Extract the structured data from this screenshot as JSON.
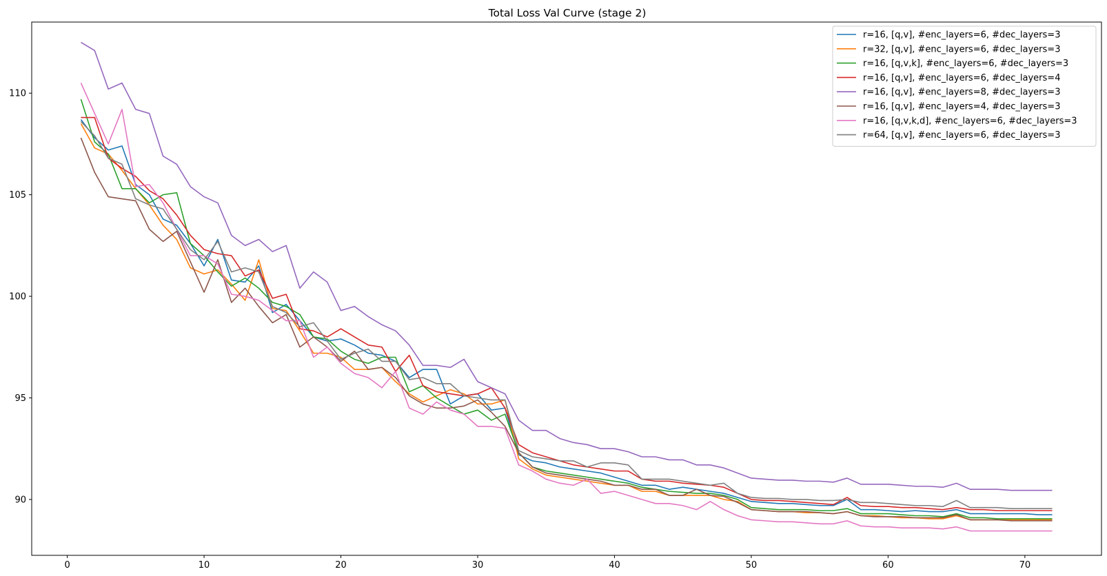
{
  "chart_data": {
    "type": "line",
    "title": "Total Loss Val Curve (stage 2)",
    "xlabel": "",
    "ylabel": "",
    "xlim": [
      -2.6,
      75.6
    ],
    "ylim": [
      87.25,
      113.5
    ],
    "xticks": [
      0,
      10,
      20,
      30,
      40,
      50,
      60,
      70
    ],
    "yticks": [
      90,
      95,
      100,
      105,
      110
    ],
    "grid": false,
    "legend_position": "top-right",
    "x": [
      1,
      2,
      3,
      4,
      5,
      6,
      7,
      8,
      9,
      10,
      11,
      12,
      13,
      14,
      15,
      16,
      17,
      18,
      19,
      20,
      21,
      22,
      23,
      24,
      25,
      26,
      27,
      28,
      29,
      30,
      31,
      32,
      33,
      34,
      35,
      36,
      37,
      38,
      39,
      40,
      41,
      42,
      43,
      44,
      45,
      46,
      47,
      48,
      49,
      50,
      51,
      52,
      53,
      54,
      55,
      56,
      57,
      58,
      59,
      60,
      61,
      62,
      63,
      64,
      65,
      66,
      67,
      68,
      69,
      70,
      71,
      72
    ],
    "series": [
      {
        "name": "r=16, [q,v], #enc_layers=6, #dec_layers=3",
        "color": "#1f77b4",
        "values": [
          108.7,
          107.8,
          107.2,
          107.4,
          105.5,
          105.0,
          103.8,
          103.5,
          102.6,
          101.5,
          102.8,
          100.8,
          100.7,
          101.5,
          99.2,
          99.6,
          98.8,
          98.0,
          97.8,
          97.9,
          97.6,
          97.2,
          97.1,
          96.8,
          96.0,
          96.4,
          96.4,
          94.7,
          95.1,
          95.2,
          94.4,
          94.5,
          92.2,
          91.9,
          91.8,
          91.6,
          91.5,
          91.4,
          91.3,
          91.1,
          90.9,
          90.7,
          90.7,
          90.5,
          90.6,
          90.5,
          90.4,
          90.3,
          90.1,
          89.9,
          89.85,
          89.8,
          89.8,
          89.75,
          89.7,
          89.7,
          90.0,
          89.5,
          89.5,
          89.45,
          89.4,
          89.45,
          89.4,
          89.4,
          89.5,
          89.3,
          89.3,
          89.3,
          89.3,
          89.3,
          89.25,
          89.25
        ]
      },
      {
        "name": "r=32, [q,v], #enc_layers=6, #dec_layers=3",
        "color": "#ff7f0e",
        "values": [
          108.5,
          107.3,
          107.0,
          106.2,
          105.3,
          104.5,
          103.5,
          102.8,
          101.4,
          101.1,
          101.3,
          100.6,
          99.8,
          101.8,
          99.4,
          99.3,
          98.3,
          97.2,
          97.2,
          97.0,
          96.4,
          96.4,
          96.5,
          95.8,
          95.2,
          94.8,
          95.1,
          95.4,
          95.2,
          94.7,
          94.7,
          94.9,
          92.0,
          91.5,
          91.2,
          91.1,
          91.0,
          90.9,
          90.8,
          90.7,
          90.7,
          90.4,
          90.4,
          90.2,
          90.2,
          90.2,
          90.2,
          90.0,
          89.9,
          89.5,
          89.45,
          89.4,
          89.4,
          89.35,
          89.35,
          89.3,
          89.4,
          89.2,
          89.2,
          89.15,
          89.1,
          89.1,
          89.05,
          89.05,
          89.2,
          89.0,
          89.0,
          89.0,
          89.0,
          89.0,
          89.0,
          89.0
        ]
      },
      {
        "name": "r=16, [q,v,k], #enc_layers=6, #dec_layers=3",
        "color": "#2ca02c",
        "values": [
          109.7,
          107.6,
          107.0,
          105.3,
          105.3,
          104.6,
          105.0,
          105.1,
          102.6,
          102.0,
          101.2,
          100.5,
          100.9,
          100.4,
          99.7,
          99.5,
          99.1,
          98.0,
          97.9,
          97.3,
          96.9,
          96.7,
          97.0,
          97.0,
          95.3,
          95.6,
          95.0,
          94.6,
          94.2,
          94.4,
          93.9,
          94.2,
          92.3,
          91.6,
          91.4,
          91.3,
          91.2,
          91.1,
          91.0,
          90.9,
          90.8,
          90.6,
          90.5,
          90.4,
          90.35,
          90.3,
          90.3,
          90.2,
          90.0,
          89.6,
          89.55,
          89.5,
          89.5,
          89.5,
          89.45,
          89.45,
          89.55,
          89.3,
          89.3,
          89.3,
          89.25,
          89.2,
          89.2,
          89.15,
          89.3,
          89.1,
          89.1,
          89.05,
          89.05,
          89.05,
          89.05,
          89.05
        ]
      },
      {
        "name": "r=16, [q,v], #enc_layers=6, #dec_layers=4",
        "color": "#d62728",
        "values": [
          108.8,
          108.8,
          106.8,
          106.3,
          105.9,
          105.2,
          104.8,
          104.0,
          103.0,
          102.3,
          102.1,
          102.0,
          101.0,
          101.3,
          99.9,
          100.1,
          98.4,
          98.3,
          98.0,
          98.4,
          98.0,
          97.6,
          97.5,
          96.3,
          97.1,
          95.6,
          95.3,
          95.2,
          95.1,
          95.2,
          95.5,
          94.5,
          92.7,
          92.3,
          92.1,
          91.9,
          91.7,
          91.6,
          91.5,
          91.4,
          91.4,
          91.0,
          90.9,
          90.9,
          90.8,
          90.75,
          90.7,
          90.6,
          90.3,
          90.0,
          89.95,
          89.95,
          89.9,
          89.85,
          89.8,
          89.75,
          90.1,
          89.7,
          89.65,
          89.65,
          89.6,
          89.6,
          89.55,
          89.5,
          89.6,
          89.5,
          89.5,
          89.45,
          89.45,
          89.45,
          89.45,
          89.45
        ]
      },
      {
        "name": "r=16, [q,v], #enc_layers=8, #dec_layers=3",
        "color": "#9467bd",
        "values": [
          112.5,
          112.1,
          110.2,
          110.5,
          109.2,
          109.0,
          106.9,
          106.5,
          105.4,
          104.9,
          104.6,
          103.0,
          102.5,
          102.8,
          102.2,
          102.5,
          100.4,
          101.2,
          100.7,
          99.3,
          99.5,
          99.0,
          98.6,
          98.3,
          97.6,
          96.6,
          96.6,
          96.5,
          96.9,
          95.8,
          95.5,
          95.2,
          93.9,
          93.4,
          93.4,
          93.0,
          92.8,
          92.7,
          92.5,
          92.5,
          92.35,
          92.1,
          92.1,
          91.95,
          91.95,
          91.7,
          91.7,
          91.55,
          91.3,
          91.05,
          91.0,
          90.95,
          90.95,
          90.9,
          90.9,
          90.85,
          91.05,
          90.75,
          90.75,
          90.75,
          90.7,
          90.65,
          90.65,
          90.6,
          90.8,
          90.5,
          90.5,
          90.5,
          90.45,
          90.45,
          90.45,
          90.45
        ]
      },
      {
        "name": "r=16, [q,v], #enc_layers=4, #dec_layers=3",
        "color": "#8c564b",
        "values": [
          107.8,
          106.1,
          104.9,
          104.8,
          104.7,
          103.3,
          102.7,
          103.2,
          101.7,
          100.2,
          101.8,
          99.7,
          100.4,
          99.5,
          98.7,
          99.1,
          97.5,
          98.0,
          97.5,
          96.8,
          97.3,
          96.4,
          96.5,
          96.0,
          95.1,
          94.7,
          94.5,
          94.5,
          94.6,
          94.9,
          94.3,
          93.6,
          92.3,
          91.6,
          91.3,
          91.2,
          91.1,
          91.0,
          90.9,
          90.7,
          90.7,
          90.5,
          90.5,
          90.2,
          90.2,
          90.5,
          90.2,
          90.15,
          89.85,
          89.5,
          89.45,
          89.4,
          89.4,
          89.4,
          89.35,
          89.3,
          89.4,
          89.2,
          89.15,
          89.15,
          89.15,
          89.1,
          89.1,
          89.1,
          89.25,
          89.0,
          89.0,
          89.0,
          88.95,
          88.95,
          88.95,
          88.95
        ]
      },
      {
        "name": "r=16, [q,v,k,d], #enc_layers=6, #dec_layers=3",
        "color": "#e377c2",
        "values": [
          110.5,
          109.0,
          107.5,
          109.2,
          105.4,
          105.5,
          104.6,
          103.3,
          102.0,
          102.0,
          101.6,
          100.1,
          100.0,
          99.8,
          99.3,
          98.8,
          98.8,
          97.0,
          97.5,
          96.7,
          96.2,
          96.0,
          95.5,
          96.3,
          94.5,
          94.2,
          94.8,
          94.4,
          94.2,
          93.6,
          93.6,
          93.5,
          91.7,
          91.4,
          91.0,
          90.8,
          90.7,
          91.0,
          90.3,
          90.4,
          90.2,
          90.0,
          89.8,
          89.8,
          89.7,
          89.5,
          89.9,
          89.5,
          89.2,
          89.0,
          88.95,
          88.9,
          88.9,
          88.85,
          88.8,
          88.8,
          88.95,
          88.7,
          88.65,
          88.65,
          88.6,
          88.6,
          88.6,
          88.55,
          88.65,
          88.45,
          88.45,
          88.45,
          88.45,
          88.45,
          88.45,
          88.45
        ]
      },
      {
        "name": "r=64, [q,v], #enc_layers=6, #dec_layers=3",
        "color": "#7f7f7f",
        "values": [
          108.6,
          107.9,
          106.8,
          106.5,
          104.8,
          104.5,
          104.3,
          103.3,
          102.3,
          101.8,
          102.7,
          101.2,
          101.4,
          101.2,
          99.5,
          99.2,
          98.5,
          98.7,
          97.8,
          96.9,
          97.2,
          97.4,
          96.8,
          96.8,
          95.9,
          96.0,
          95.7,
          95.7,
          95.1,
          95.0,
          94.9,
          94.9,
          92.4,
          92.1,
          92.0,
          91.9,
          91.9,
          91.6,
          91.8,
          91.8,
          91.7,
          91.0,
          91.0,
          91.0,
          90.9,
          90.8,
          90.7,
          90.8,
          90.3,
          90.1,
          90.05,
          90.05,
          90.0,
          90.0,
          89.95,
          89.95,
          90.0,
          89.85,
          89.85,
          89.8,
          89.75,
          89.7,
          89.7,
          89.65,
          89.95,
          89.6,
          89.6,
          89.6,
          89.55,
          89.55,
          89.55,
          89.55
        ]
      }
    ]
  }
}
